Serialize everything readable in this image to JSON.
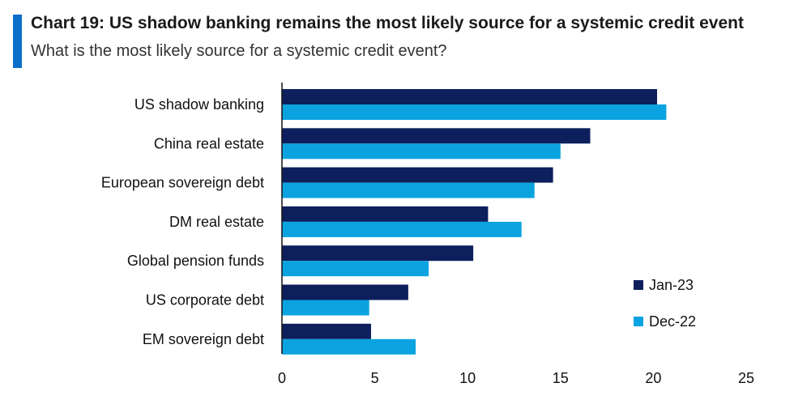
{
  "header": {
    "title": "Chart 19: US shadow banking remains the most likely source for a systemic credit event",
    "subtitle": "What is the most likely source for a systemic credit event?"
  },
  "chart_data": {
    "type": "bar",
    "orientation": "horizontal",
    "title": "Chart 19: US shadow banking remains the most likely source for a systemic credit event",
    "subtitle": "What is the most likely source for a systemic credit event?",
    "categories": [
      "US shadow banking",
      "China real estate",
      "European sovereign debt",
      "DM real estate",
      "Global pension funds",
      "US corporate debt",
      "EM sovereign debt"
    ],
    "series": [
      {
        "name": "Jan-23",
        "color": "#0d1f5c",
        "values": [
          20.2,
          16.6,
          14.6,
          11.1,
          10.3,
          6.8,
          4.8
        ]
      },
      {
        "name": "Dec-22",
        "color": "#0aa3e0",
        "values": [
          20.7,
          15.0,
          13.6,
          12.9,
          7.9,
          4.7,
          7.2
        ]
      }
    ],
    "xlim": [
      0,
      25
    ],
    "xticks": [
      "0",
      "5",
      "10",
      "15",
      "20",
      "25"
    ],
    "grid": false,
    "legend_position": "right"
  }
}
